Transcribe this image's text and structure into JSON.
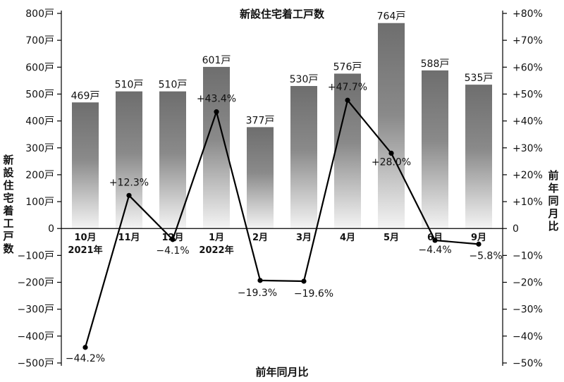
{
  "chart_data": {
    "type": "bar+line",
    "title": "新設住宅着工戸数",
    "xlabel": "前年同月比",
    "ylabel_left": "新設住宅着工戸数",
    "ylabel_right": "前年同月比",
    "categories": [
      "10月",
      "11月",
      "12月",
      "1月",
      "2月",
      "3月",
      "4月",
      "5月",
      "6月",
      "9月"
    ],
    "category_sublabels": [
      "2021年",
      "",
      "",
      "2022年",
      "",
      "",
      "",
      "",
      "",
      ""
    ],
    "bars": {
      "values": [
        469,
        510,
        510,
        601,
        377,
        530,
        576,
        764,
        588,
        535
      ],
      "labels": [
        "469戸",
        "510戸",
        "510戸",
        "601戸",
        "377戸",
        "530戸",
        "576戸",
        "764戸",
        "588戸",
        "535戸"
      ]
    },
    "line": {
      "values": [
        -44.2,
        12.3,
        -4.1,
        43.4,
        -19.3,
        -19.6,
        47.7,
        28.0,
        -4.4,
        -5.8
      ],
      "labels": [
        "−44.2%",
        "+12.3%",
        "−4.1%",
        "+43.4%",
        "−19.3%",
        "−19.6%",
        "+47.7%",
        "+28.0%",
        "−4.4%",
        "−5.8%"
      ]
    },
    "ylim_left": [
      -500,
      800
    ],
    "yticks_left": [
      "800戸",
      "700戸",
      "600戸",
      "500戸",
      "400戸",
      "300戸",
      "200戸",
      "100戸",
      "0",
      "−100戸",
      "−200戸",
      "−300戸",
      "−400戸",
      "−500戸"
    ],
    "ylim_right": [
      -50,
      80
    ],
    "yticks_right": [
      "+80%",
      "+70%",
      "+60%",
      "+50%",
      "+40%",
      "+30%",
      "+20%",
      "+10%",
      "0",
      "−10%",
      "−20%",
      "−30%",
      "−40%",
      "−50%"
    ],
    "grid": false,
    "colors": {
      "bar": "#6f6f6f",
      "line": "#000000"
    }
  }
}
